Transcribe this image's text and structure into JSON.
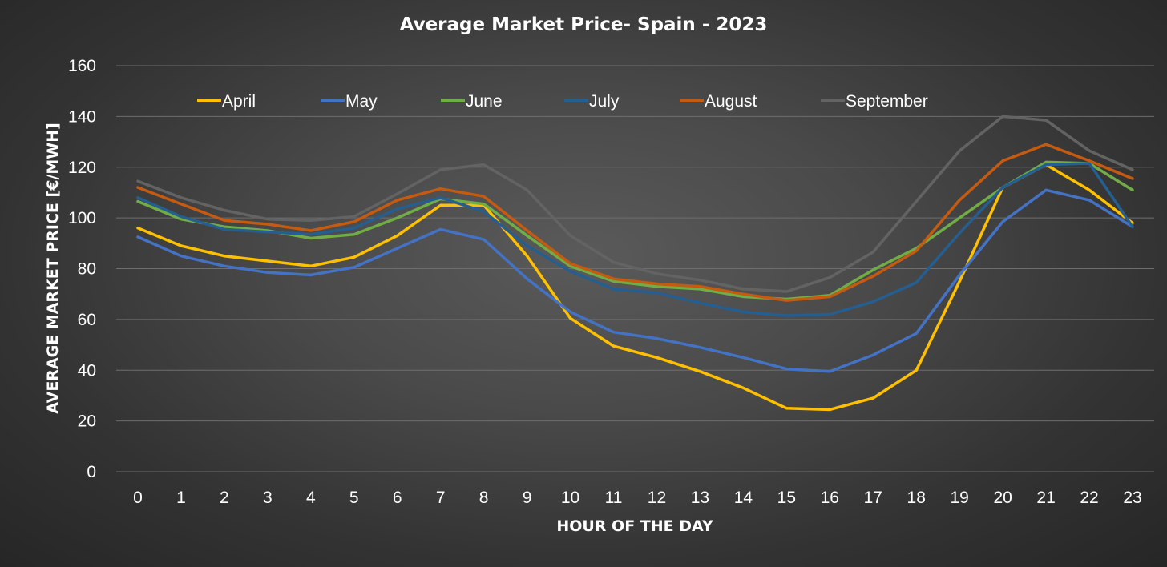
{
  "chart_data": {
    "type": "line",
    "title": "Average Market Price- Spain - 2023",
    "xlabel": "HOUR OF THE DAY",
    "ylabel": "AVERAGE MARKET PRICE [€/MWH]",
    "ylim": [
      0,
      160
    ],
    "yticks": [
      "0",
      "20",
      "40",
      "60",
      "80",
      "100",
      "120",
      "140",
      "160"
    ],
    "x": [
      0,
      1,
      2,
      3,
      4,
      5,
      6,
      7,
      8,
      9,
      10,
      11,
      12,
      13,
      14,
      15,
      16,
      17,
      18,
      19,
      20,
      21,
      22,
      23
    ],
    "grid": "horizontal",
    "legend": "top",
    "series": [
      {
        "name": "April",
        "color": "#ffc000",
        "values": [
          96,
          89,
          85,
          83,
          81,
          84.5,
          93,
          105,
          105,
          85,
          60.5,
          49.5,
          45,
          39.5,
          33,
          25,
          24.5,
          29,
          40,
          75,
          112,
          121,
          111,
          98
        ]
      },
      {
        "name": "May",
        "color": "#4472c4",
        "values": [
          92.5,
          85,
          81,
          78.5,
          77.5,
          80.5,
          88,
          95.5,
          91.5,
          76,
          63,
          55,
          52.5,
          49,
          45,
          40.5,
          39.5,
          46,
          54.5,
          77.5,
          98.5,
          111,
          107,
          96.5
        ]
      },
      {
        "name": "June",
        "color": "#70ad47",
        "values": [
          106.5,
          99.5,
          96.5,
          95,
          92,
          93.5,
          100,
          107.5,
          105.5,
          93,
          81,
          75,
          73,
          72,
          69,
          68,
          69.5,
          79.5,
          88,
          100,
          112,
          122,
          121.5,
          111
        ]
      },
      {
        "name": "July",
        "color": "#255e91",
        "values": [
          108,
          100.5,
          95.5,
          94.5,
          93.5,
          96,
          103.5,
          108,
          102.5,
          89,
          79,
          72,
          70.5,
          66.5,
          63,
          61.5,
          62,
          67,
          74.5,
          94,
          112,
          121,
          121.5,
          96.5
        ]
      },
      {
        "name": "August",
        "color": "#c55a11",
        "values": [
          112,
          105.5,
          99,
          97.5,
          95,
          98.5,
          107,
          111.5,
          108.5,
          95,
          82,
          76,
          74,
          73,
          70,
          67.5,
          69,
          77,
          87,
          107,
          122.5,
          129,
          122.5,
          115.5
        ]
      },
      {
        "name": "September",
        "color": "#636363",
        "values": [
          114.5,
          108,
          103,
          99.5,
          99,
          100.5,
          109.5,
          119,
          121,
          111,
          93,
          82.5,
          78,
          75.5,
          72,
          71,
          76.5,
          86.5,
          106.5,
          126.5,
          140,
          138.5,
          126.5,
          119
        ]
      }
    ]
  }
}
